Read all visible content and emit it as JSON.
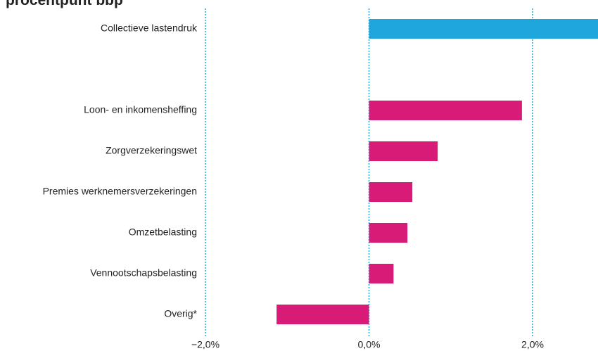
{
  "chart_data": {
    "type": "barh",
    "title": "procentpunt bbp",
    "categories": [
      "Collectieve lastendruk",
      null,
      "Loon- en inkomensheffing",
      "Zorgverzekeringswet",
      "Premies werknemersverzekeringen",
      "Omzetbelasting",
      "Vennootschapsbelasting",
      "Overig*"
    ],
    "values": [
      2.8,
      null,
      1.87,
      0.84,
      0.53,
      0.47,
      0.3,
      -1.13
    ],
    "colors": [
      "#1fa6dc",
      null,
      "#d81b77",
      "#d81b77",
      "#d81b77",
      "#d81b77",
      "#d81b77",
      "#d81b77"
    ],
    "xlim": [
      -2,
      2.8
    ],
    "xticks": [
      {
        "value": -2,
        "label": "−2,0%"
      },
      {
        "value": 0,
        "label": "0,0%"
      },
      {
        "value": 2,
        "label": "2,0%"
      }
    ],
    "grid": true,
    "grid_color": "#1fa6dc"
  }
}
